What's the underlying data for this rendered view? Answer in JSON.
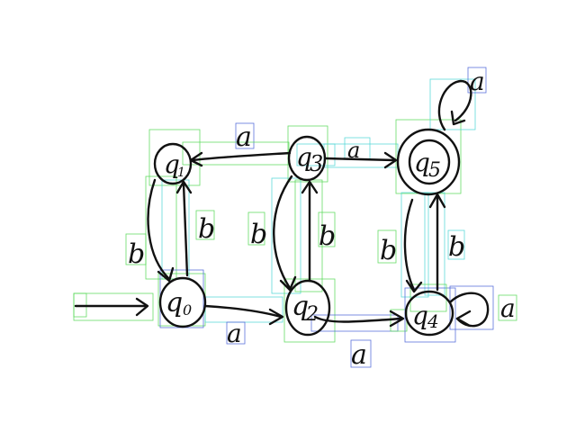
{
  "states": {
    "q1": {
      "name": "q",
      "sub": "1"
    },
    "q3": {
      "name": "q",
      "sub": "3"
    },
    "q5": {
      "name": "q",
      "sub": "5"
    },
    "q0": {
      "name": "q",
      "sub": "0"
    },
    "q2": {
      "name": "q",
      "sub": "2"
    },
    "q4": {
      "name": "q",
      "sub": "4"
    }
  },
  "transitions": {
    "q1_q3": "a",
    "q3_q5": "a",
    "q5_loop": "a",
    "q1_q0": "b",
    "q0_q1": "b",
    "q3_q2": "b",
    "q2_q3": "b",
    "q5_q4": "b",
    "q4_q5": "b",
    "q0_q2": "a",
    "q2_q4": "a",
    "q4_loop": "a"
  },
  "colors": {
    "ink": "#111111",
    "box_green": "#57d957",
    "box_cyan": "#4fd6d6",
    "box_blue": "#4a64d8"
  }
}
